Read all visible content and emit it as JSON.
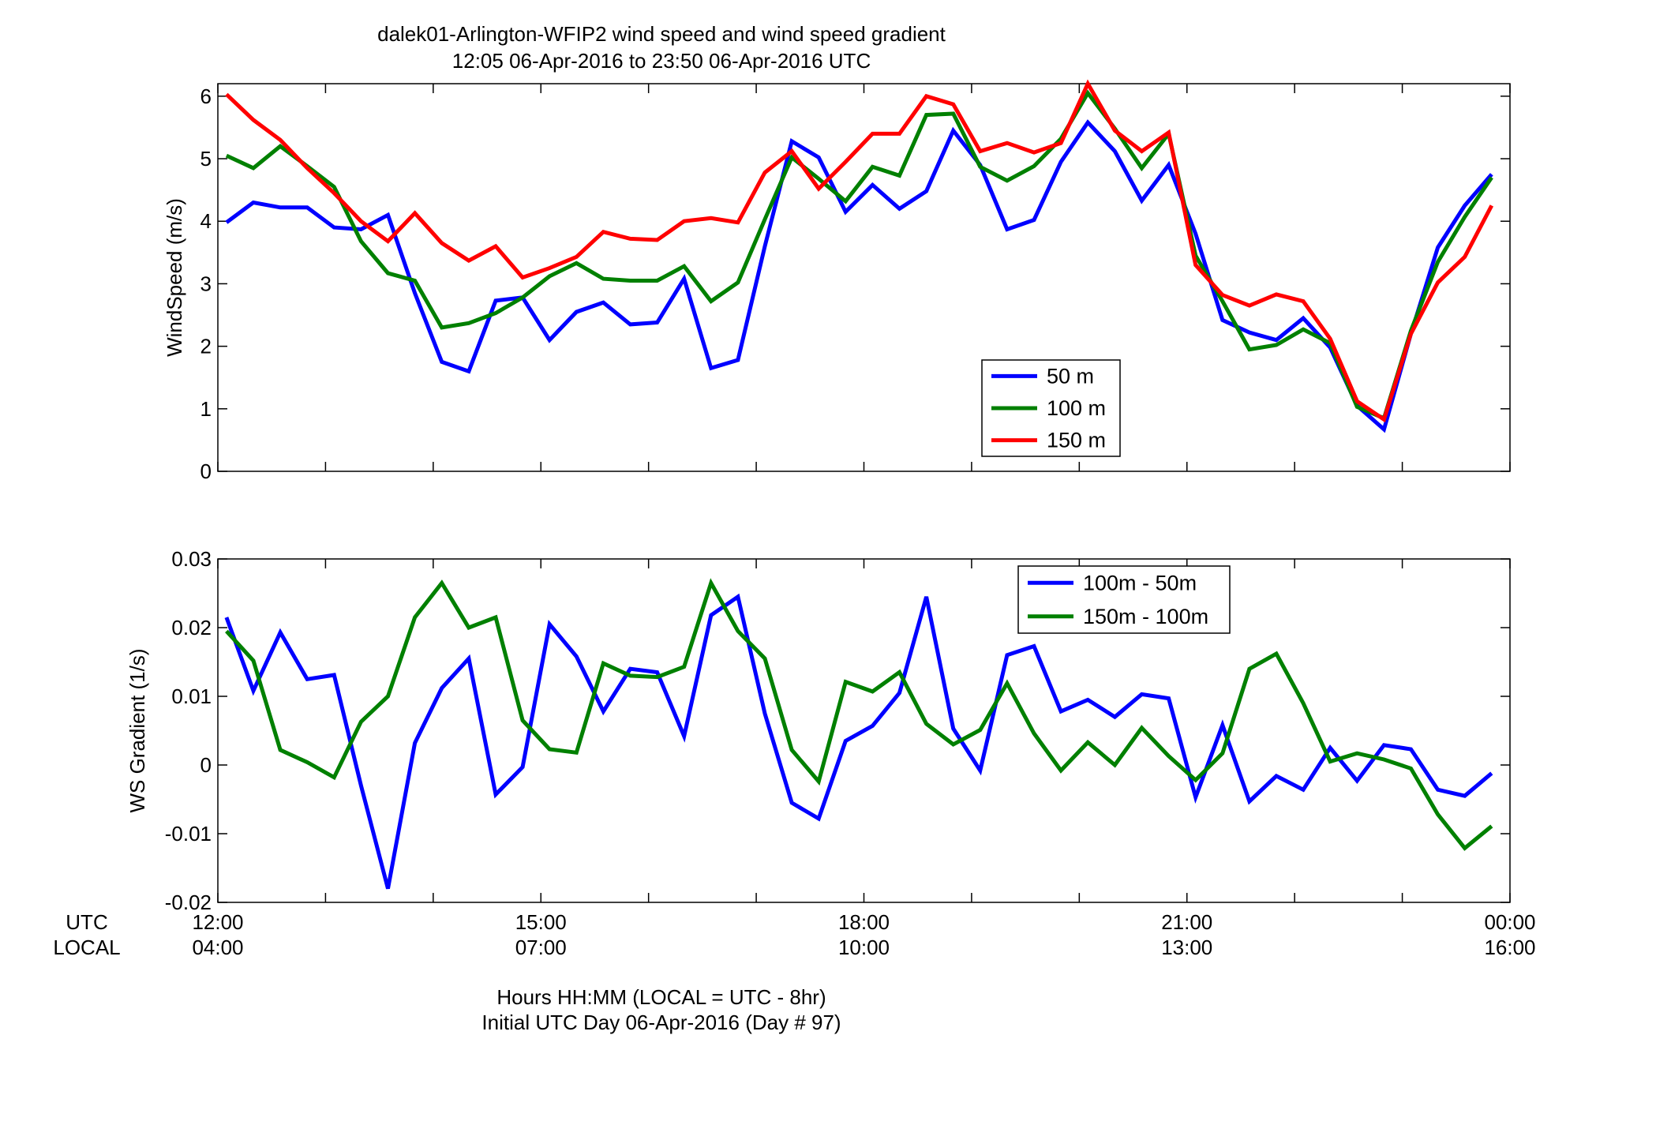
{
  "title_line1": "dalek01-Arlington-WFIP2  wind speed and wind speed gradient",
  "title_line2": "12:05 06-Apr-2016 to 23:50 06-Apr-2016  UTC",
  "row_labels": {
    "utc": "UTC",
    "local": "LOCAL"
  },
  "xticks": [
    {
      "utc": "12:00",
      "local": "04:00",
      "hour": 12
    },
    {
      "utc": "15:00",
      "local": "07:00",
      "hour": 15
    },
    {
      "utc": "18:00",
      "local": "10:00",
      "hour": 18
    },
    {
      "utc": "21:00",
      "local": "13:00",
      "hour": 21
    },
    {
      "utc": "00:00",
      "local": "16:00",
      "hour": 24
    }
  ],
  "xlabel_line1": "Hours HH:MM  (LOCAL = UTC - 8hr)",
  "xlabel_line2": "Initial UTC Day 06-Apr-2016 (Day # 97)",
  "chart_data": [
    {
      "type": "line",
      "ylabel": "WindSpeed (m/s)",
      "xlim": [
        12,
        24
      ],
      "ylim": [
        0,
        6.2
      ],
      "yticks": [
        0,
        1,
        2,
        3,
        4,
        5,
        6
      ],
      "legend_position": "lower-right",
      "x": [
        12.08,
        12.33,
        12.58,
        12.83,
        13.08,
        13.33,
        13.58,
        13.83,
        14.08,
        14.33,
        14.58,
        14.83,
        15.08,
        15.33,
        15.58,
        15.83,
        16.08,
        16.33,
        16.58,
        16.83,
        17.08,
        17.33,
        17.58,
        17.83,
        18.08,
        18.33,
        18.58,
        18.83,
        19.08,
        19.33,
        19.58,
        19.83,
        20.08,
        20.33,
        20.58,
        20.83,
        21.08,
        21.33,
        21.58,
        21.83,
        22.08,
        22.33,
        22.58,
        22.83,
        23.08,
        23.33,
        23.58,
        23.83
      ],
      "series": [
        {
          "name": "50 m",
          "color": "#0000ff",
          "values": [
            3.98,
            4.3,
            4.22,
            4.22,
            3.9,
            3.87,
            4.1,
            2.85,
            1.75,
            1.6,
            2.73,
            2.78,
            2.1,
            2.55,
            2.7,
            2.35,
            2.38,
            3.08,
            1.65,
            1.78,
            3.6,
            5.28,
            5.02,
            4.15,
            4.58,
            4.2,
            4.48,
            5.45,
            4.9,
            3.87,
            4.02,
            4.95,
            5.58,
            5.12,
            4.33,
            4.9,
            3.8,
            2.42,
            2.22,
            2.1,
            2.45,
            1.98,
            1.05,
            0.67,
            2.2,
            3.58,
            4.25,
            4.75
          ]
        },
        {
          "name": "100 m",
          "color": "#008000",
          "values": [
            5.05,
            4.85,
            5.2,
            4.88,
            4.55,
            3.68,
            3.17,
            3.05,
            2.3,
            2.37,
            2.53,
            2.78,
            3.12,
            3.33,
            3.08,
            3.05,
            3.05,
            3.28,
            2.72,
            3.02,
            4.03,
            5.02,
            4.68,
            4.32,
            4.87,
            4.73,
            5.7,
            5.72,
            4.87,
            4.65,
            4.88,
            5.32,
            6.05,
            5.48,
            4.85,
            5.4,
            3.45,
            2.72,
            1.95,
            2.02,
            2.27,
            2.05,
            1.03,
            0.85,
            2.25,
            3.35,
            4.07,
            4.7
          ]
        },
        {
          "name": "150 m",
          "color": "#ff0000",
          "values": [
            6.03,
            5.62,
            5.3,
            4.85,
            4.45,
            4.0,
            3.68,
            4.13,
            3.65,
            3.37,
            3.6,
            3.1,
            3.25,
            3.43,
            3.83,
            3.72,
            3.7,
            4.0,
            4.05,
            3.98,
            4.78,
            5.12,
            4.52,
            4.95,
            5.4,
            5.4,
            6.0,
            5.87,
            5.12,
            5.25,
            5.1,
            5.25,
            6.2,
            5.45,
            5.12,
            5.42,
            3.3,
            2.82,
            2.65,
            2.83,
            2.72,
            2.12,
            1.12,
            0.83,
            2.2,
            3.02,
            3.43,
            4.25
          ]
        }
      ]
    },
    {
      "type": "line",
      "ylabel": "WS Gradient (1/s)",
      "xlim": [
        12,
        24
      ],
      "ylim": [
        -0.02,
        0.03
      ],
      "yticks": [
        -0.02,
        -0.01,
        0,
        0.01,
        0.02,
        0.03
      ],
      "ytick_labels": [
        "-0.02",
        "-0.01",
        "0",
        "0.01",
        "0.02",
        "0.03"
      ],
      "legend_position": "top-right",
      "x": [
        12.08,
        12.33,
        12.58,
        12.83,
        13.08,
        13.33,
        13.58,
        13.83,
        14.08,
        14.33,
        14.58,
        14.83,
        15.08,
        15.33,
        15.58,
        15.83,
        16.08,
        16.33,
        16.58,
        16.83,
        17.08,
        17.33,
        17.58,
        17.83,
        18.08,
        18.33,
        18.58,
        18.83,
        19.08,
        19.33,
        19.58,
        19.83,
        20.08,
        20.33,
        20.58,
        20.83,
        21.08,
        21.33,
        21.58,
        21.83,
        22.08,
        22.33,
        22.58,
        22.83,
        23.08,
        23.33,
        23.58,
        23.83
      ],
      "series": [
        {
          "name": "100m - 50m",
          "color": "#0000ff",
          "values": [
            0.0215,
            0.0108,
            0.0193,
            0.0125,
            0.0131,
            -0.003,
            -0.018,
            0.0032,
            0.0112,
            0.0155,
            -0.0043,
            -0.0003,
            0.0205,
            0.0158,
            0.0078,
            0.014,
            0.0135,
            0.0042,
            0.0218,
            0.0245,
            0.0075,
            -0.0055,
            -0.0078,
            0.0035,
            0.0057,
            0.0105,
            0.0245,
            0.0053,
            -0.0008,
            0.016,
            0.0173,
            0.0078,
            0.0095,
            0.007,
            0.0103,
            0.0097,
            -0.0047,
            0.0058,
            -0.0053,
            -0.0016,
            -0.0036,
            0.0025,
            -0.0023,
            0.0029,
            0.0023,
            -0.0036,
            -0.0045,
            -0.0012
          ]
        },
        {
          "name": "150m - 100m",
          "color": "#008000",
          "values": [
            0.0195,
            0.0152,
            0.0022,
            0.0004,
            -0.0018,
            0.0063,
            0.01,
            0.0215,
            0.0265,
            0.02,
            0.0215,
            0.0065,
            0.0023,
            0.0018,
            0.0148,
            0.013,
            0.0128,
            0.0143,
            0.0265,
            0.0195,
            0.0155,
            0.0022,
            -0.0024,
            0.0121,
            0.0107,
            0.0135,
            0.006,
            0.003,
            0.0051,
            0.0119,
            0.0046,
            -0.0008,
            0.0033,
            0.0,
            0.0054,
            0.0013,
            -0.0022,
            0.0017,
            0.014,
            0.0162,
            0.009,
            0.0005,
            0.0017,
            0.0008,
            -0.0005,
            -0.0072,
            -0.0121,
            -0.0089
          ]
        }
      ]
    }
  ]
}
